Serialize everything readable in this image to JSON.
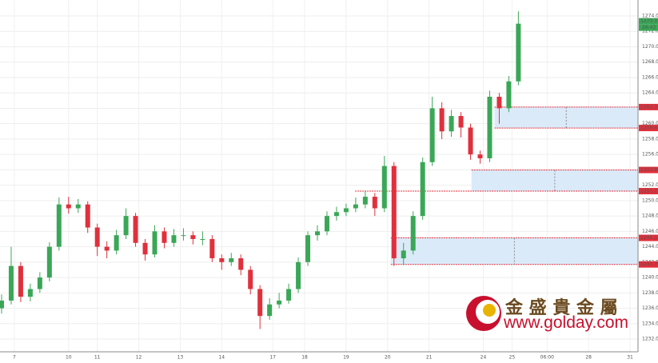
{
  "chart_data": {
    "type": "candlestick",
    "up_color": "#3aa757",
    "down_color": "#e0303c",
    "xlim": [
      -0.5,
      199.5
    ],
    "ylim": [
      1230.34,
      1276.08
    ],
    "xticks": [
      {
        "value": 4,
        "label": "7"
      },
      {
        "value": 21,
        "label": "10"
      },
      {
        "value": 30,
        "label": "11"
      },
      {
        "value": 43,
        "label": "12"
      },
      {
        "value": 56,
        "label": "13"
      },
      {
        "value": 69,
        "label": "14"
      },
      {
        "value": 85,
        "label": "17"
      },
      {
        "value": 95,
        "label": "18"
      },
      {
        "value": 108,
        "label": "19"
      },
      {
        "value": 121,
        "label": "20"
      },
      {
        "value": 134,
        "label": "21"
      },
      {
        "value": 151,
        "label": "24"
      },
      {
        "value": 160,
        "label": "25"
      },
      {
        "value": 171,
        "label": "06:00"
      },
      {
        "value": 184,
        "label": "28"
      },
      {
        "value": 197,
        "label": "31"
      }
    ],
    "yticks": [
      {
        "value": 1232,
        "label": "1232.00"
      },
      {
        "value": 1234,
        "label": "1234.00"
      },
      {
        "value": 1236,
        "label": "1236.00"
      },
      {
        "value": 1238,
        "label": "1238.00"
      },
      {
        "value": 1240,
        "label": "1240.00"
      },
      {
        "value": 1242,
        "label": "1242.00"
      },
      {
        "value": 1244,
        "label": "1244.00"
      },
      {
        "value": 1246,
        "label": "1246.00"
      },
      {
        "value": 1248,
        "label": "1248.00"
      },
      {
        "value": 1250,
        "label": "1250.00"
      },
      {
        "value": 1252,
        "label": "1252.00"
      },
      {
        "value": 1254,
        "label": "1254.00"
      },
      {
        "value": 1256,
        "label": "1256.00"
      },
      {
        "value": 1258,
        "label": "1258.00"
      },
      {
        "value": 1260,
        "label": "1260.00"
      },
      {
        "value": 1262,
        "label": "1262.00"
      },
      {
        "value": 1264,
        "label": "1264.00"
      },
      {
        "value": 1266,
        "label": "1266.00"
      },
      {
        "value": 1268,
        "label": "1268.00"
      },
      {
        "value": 1270,
        "label": "1270.00"
      },
      {
        "value": 1272,
        "label": "1272.00"
      },
      {
        "value": 1274,
        "label": "1274.00"
      }
    ],
    "x": [
      0,
      3,
      6,
      9,
      12,
      15,
      18,
      21,
      24,
      27,
      30,
      33,
      36,
      39,
      42,
      45,
      48,
      51,
      54,
      57,
      60,
      63,
      66,
      69,
      72,
      75,
      78,
      81,
      84,
      87,
      90,
      93,
      96,
      99,
      102,
      105,
      108,
      111,
      114,
      117,
      120,
      123,
      126,
      129,
      132,
      135,
      138,
      141,
      144,
      147,
      150,
      153,
      156,
      159,
      162
    ],
    "open": [
      1236.0,
      1237.0,
      1241.5,
      1237.5,
      1238.5,
      1240.0,
      1244.0,
      1249.5,
      1249.0,
      1249.5,
      1246.5,
      1244.0,
      1243.5,
      1245.5,
      1248.0,
      1244.5,
      1243.0,
      1246.0,
      1244.5,
      1245.5,
      1245.5,
      1245.0,
      1245.0,
      1242.5,
      1242.0,
      1242.5,
      1241.0,
      1238.5,
      1235.0,
      1236.5,
      1237.0,
      1238.5,
      1242.0,
      1245.5,
      1246.0,
      1248.0,
      1248.5,
      1249.0,
      1249.5,
      1250.5,
      1249.0,
      1254.5,
      1242.5,
      1243.5,
      1248.0,
      1255.0,
      1262.0,
      1259.0,
      1261.0,
      1259.5,
      1256.0,
      1255.5,
      1263.5,
      1262.0,
      1265.5
    ],
    "high": [
      1237.8,
      1244.0,
      1242.0,
      1239.2,
      1240.7,
      1244.6,
      1250.4,
      1250.5,
      1250.2,
      1249.9,
      1247.0,
      1244.7,
      1246.2,
      1249.0,
      1248.4,
      1245.0,
      1246.8,
      1246.5,
      1246.3,
      1246.4,
      1246.0,
      1246.0,
      1245.5,
      1243.0,
      1243.2,
      1243.0,
      1241.5,
      1239.0,
      1237.3,
      1238.0,
      1239.2,
      1242.6,
      1246.0,
      1246.8,
      1248.6,
      1249.2,
      1249.6,
      1250.4,
      1251.2,
      1251.0,
      1255.8,
      1255.0,
      1244.5,
      1248.6,
      1255.6,
      1263.5,
      1262.8,
      1261.8,
      1261.5,
      1260.0,
      1256.5,
      1264.3,
      1264.0,
      1266.2,
      1274.6
    ],
    "low": [
      1235.3,
      1236.5,
      1236.8,
      1236.9,
      1238.0,
      1239.5,
      1243.5,
      1248.3,
      1248.4,
      1245.8,
      1242.8,
      1242.5,
      1243.0,
      1245.0,
      1244.0,
      1242.2,
      1242.6,
      1243.8,
      1244.0,
      1244.8,
      1244.3,
      1244.2,
      1242.0,
      1241.0,
      1241.5,
      1240.3,
      1237.8,
      1233.3,
      1234.5,
      1236.0,
      1236.6,
      1238.0,
      1241.5,
      1244.8,
      1245.5,
      1247.4,
      1248.0,
      1248.5,
      1249.0,
      1248.0,
      1248.5,
      1241.5,
      1241.6,
      1243.0,
      1247.5,
      1254.5,
      1258.0,
      1258.3,
      1258.2,
      1255.3,
      1254.8,
      1255.0,
      1260.0,
      1261.5,
      1265.0
    ],
    "close": [
      1237.0,
      1241.5,
      1237.5,
      1238.5,
      1240.0,
      1244.0,
      1249.5,
      1249.0,
      1249.5,
      1246.5,
      1244.0,
      1243.5,
      1245.5,
      1248.0,
      1244.5,
      1243.0,
      1246.0,
      1244.5,
      1245.5,
      1245.5,
      1245.0,
      1245.0,
      1242.5,
      1242.0,
      1242.5,
      1241.0,
      1238.5,
      1235.0,
      1236.5,
      1237.0,
      1238.5,
      1242.0,
      1245.5,
      1246.0,
      1248.0,
      1248.5,
      1249.0,
      1249.5,
      1250.5,
      1249.0,
      1254.5,
      1242.5,
      1243.5,
      1248.0,
      1255.0,
      1262.0,
      1259.0,
      1261.0,
      1259.5,
      1256.0,
      1255.5,
      1263.5,
      1262.0,
      1265.5,
      1273.0
    ],
    "zones": [
      {
        "top": 1262.16,
        "bottom": 1259.44,
        "start": 154.5
      },
      {
        "top": 1253.98,
        "bottom": 1251.23,
        "start": 147.3,
        "bottom_line_start": 110.8
      },
      {
        "top": 1245.15,
        "bottom": {
          "value": 1241.7,
          "label": "1241.70"
        },
        "start": 122
      }
    ],
    "current_price": 1273.31,
    "countdown": "26:43",
    "watermark": {
      "brand": "金 盛 貴 金 屬",
      "url": "www.golday.com"
    }
  }
}
